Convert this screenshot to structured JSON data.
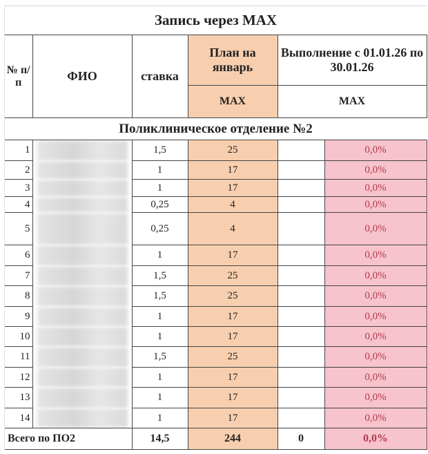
{
  "title": "Запись через MAX",
  "headers": {
    "num": "№ п/п",
    "fio": "ФИО",
    "rate": "ставка",
    "plan": "План на январь",
    "done": "Выполнение с 01.01.26 по 30.01.26",
    "plan_sub": "MAX",
    "done_sub": "MAX"
  },
  "section": "Поликлиническое отделение №2",
  "rows": [
    {
      "n": "1",
      "rate": "1,5",
      "plan": "25",
      "done": "",
      "pct": "0,0%"
    },
    {
      "n": "2",
      "rate": "1",
      "plan": "17",
      "done": "",
      "pct": "0,0%"
    },
    {
      "n": "3",
      "rate": "1",
      "plan": "17",
      "done": "",
      "pct": "0,0%"
    },
    {
      "n": "4",
      "rate": "0,25",
      "plan": "4",
      "done": "",
      "pct": "0,0%"
    },
    {
      "n": "5",
      "rate": "0,25",
      "plan": "4",
      "done": "",
      "pct": "0,0%"
    },
    {
      "n": "6",
      "rate": "1",
      "plan": "17",
      "done": "",
      "pct": "0,0%"
    },
    {
      "n": "7",
      "rate": "1,5",
      "plan": "25",
      "done": "",
      "pct": "0,0%"
    },
    {
      "n": "8",
      "rate": "1,5",
      "plan": "25",
      "done": "",
      "pct": "0,0%"
    },
    {
      "n": "9",
      "rate": "1",
      "plan": "17",
      "done": "",
      "pct": "0,0%"
    },
    {
      "n": "10",
      "rate": "1",
      "plan": "17",
      "done": "",
      "pct": "0,0%"
    },
    {
      "n": "11",
      "rate": "1,5",
      "plan": "25",
      "done": "",
      "pct": "0,0%"
    },
    {
      "n": "12",
      "rate": "1",
      "plan": "17",
      "done": "",
      "pct": "0,0%"
    },
    {
      "n": "13",
      "rate": "1",
      "plan": "17",
      "done": "",
      "pct": "0,0%"
    },
    {
      "n": "14",
      "rate": "1",
      "plan": "17",
      "done": "",
      "pct": "0,0%"
    }
  ],
  "total": {
    "label": "Всего по ПО2",
    "rate": "14,5",
    "plan": "244",
    "done": "0",
    "pct": "0,0%"
  },
  "colors": {
    "plan_fill": "#f8cfae",
    "pct_fill": "#f7c3cc",
    "pct_text": "#b03a50"
  }
}
